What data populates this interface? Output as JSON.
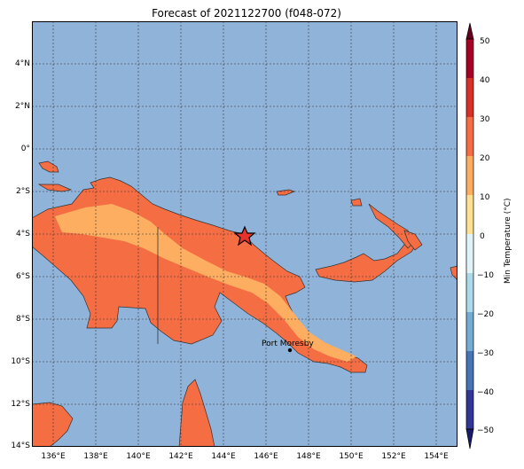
{
  "title": "Forecast of 2021122700 (f048-072)",
  "map": {
    "lon_range": [
      135,
      155
    ],
    "lat_range": [
      -14,
      6
    ],
    "lon_ticks": [
      "136°E",
      "138°E",
      "140°E",
      "142°E",
      "144°E",
      "146°E",
      "148°E",
      "150°E",
      "152°E",
      "154°E"
    ],
    "lat_ticks": [
      "4°N",
      "2°N",
      "0°",
      "2°S",
      "4°S",
      "6°S",
      "8°S",
      "10°S",
      "12°S",
      "14°S"
    ],
    "ocean_color": "#8fb3d9",
    "land_color": "#f46d43",
    "marker": {
      "label": "storm-marker",
      "lon": 145.0,
      "lat": -4.0
    },
    "city": {
      "name": "Port Moresby",
      "lon": 147.15,
      "lat": -9.45
    }
  },
  "colorbar": {
    "label": "Min Temperature (°C)",
    "ticks": [
      "50",
      "40",
      "30",
      "20",
      "10",
      "0",
      "−10",
      "−20",
      "−30",
      "−40",
      "−50"
    ],
    "colors": [
      "#a50026",
      "#d73027",
      "#f46d43",
      "#fdae61",
      "#fee090",
      "#ffffbf",
      "#e0f3f8",
      "#abd9e9",
      "#74add1",
      "#4575b4",
      "#313695"
    ]
  }
}
